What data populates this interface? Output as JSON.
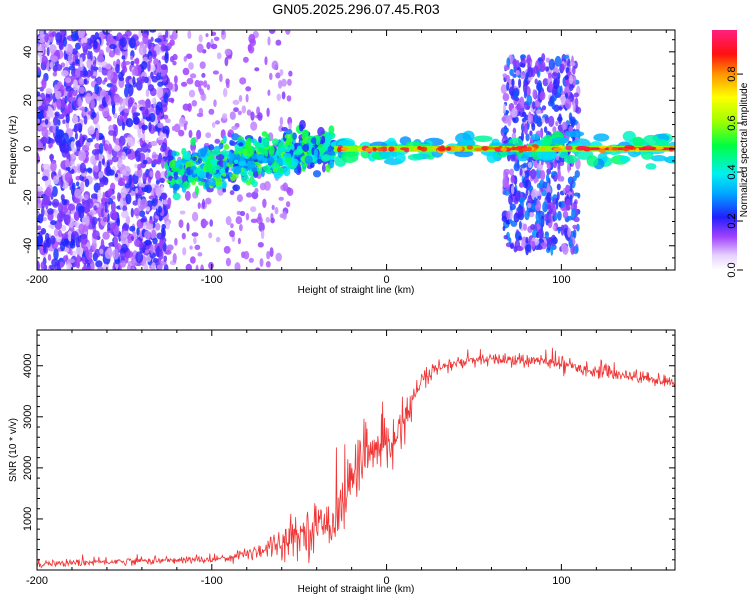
{
  "title": "GN05.2025.296.07.45.R03",
  "chart_data": [
    {
      "type": "heatmap",
      "name": "spectrogram",
      "xlabel": "Height of straight line (km)",
      "ylabel": "Frequency (Hz)",
      "xlim": [
        -200,
        165
      ],
      "ylim": [
        -50,
        49
      ],
      "xticks": [
        -200,
        -100,
        0,
        100
      ],
      "yticks": [
        -40,
        -20,
        0,
        20,
        40
      ],
      "colorbar": {
        "label": "Normalized spectral amplitude",
        "range": [
          0,
          0.98
        ],
        "ticks": [
          "0.0",
          "0.2",
          "0.4",
          "0.6",
          "0.8"
        ],
        "tick_values": [
          0.0,
          0.2,
          0.4,
          0.6,
          0.8
        ]
      },
      "features": [
        {
          "description": "broadband noise",
          "x_range": [
            -200,
            -125
          ],
          "amplitude": 0.2
        },
        {
          "description": "echo trace rising toward 0 Hz",
          "x_range": [
            -125,
            -30
          ],
          "frequency_start": -10,
          "frequency_end": 1,
          "amplitude": 0.5
        },
        {
          "description": "strong narrow echo near 0 Hz",
          "x_range": [
            -30,
            165
          ],
          "frequency": 0,
          "amplitude": 0.95
        },
        {
          "description": "broadband noise",
          "x_range": [
            67,
            110
          ],
          "amplitude": 0.25
        }
      ]
    },
    {
      "type": "line",
      "name": "snr",
      "xlabel": "Height of straight line (km)",
      "ylabel": "SNR (10 * v/v)",
      "xlim": [
        -200,
        165
      ],
      "ylim": [
        0,
        4700
      ],
      "xticks": [
        -200,
        -100,
        0,
        100
      ],
      "yticks": [
        1000,
        2000,
        3000,
        4000
      ],
      "color": "#ef3535",
      "series": [
        {
          "name": "SNR",
          "x": [
            -200,
            -180,
            -160,
            -140,
            -120,
            -100,
            -90,
            -80,
            -70,
            -60,
            -50,
            -40,
            -30,
            -25,
            -20,
            -15,
            -10,
            -5,
            0,
            5,
            10,
            15,
            20,
            25,
            30,
            40,
            50,
            60,
            70,
            80,
            90,
            100,
            110,
            120,
            130,
            140,
            150,
            165
          ],
          "y": [
            130,
            140,
            160,
            180,
            190,
            210,
            250,
            320,
            420,
            560,
            700,
            850,
            1000,
            1300,
            1800,
            2200,
            2300,
            2300,
            2400,
            2650,
            2900,
            3300,
            3700,
            3850,
            3950,
            4050,
            4100,
            4120,
            4120,
            4100,
            4080,
            4050,
            3950,
            3900,
            3850,
            3800,
            3750,
            3650
          ],
          "noise": [
            60,
            60,
            60,
            60,
            60,
            70,
            80,
            120,
            180,
            260,
            330,
            380,
            420,
            500,
            550,
            480,
            420,
            420,
            400,
            350,
            300,
            260,
            180,
            150,
            120,
            110,
            110,
            110,
            110,
            110,
            110,
            120,
            110,
            110,
            110,
            110,
            110,
            110
          ]
        }
      ]
    }
  ]
}
